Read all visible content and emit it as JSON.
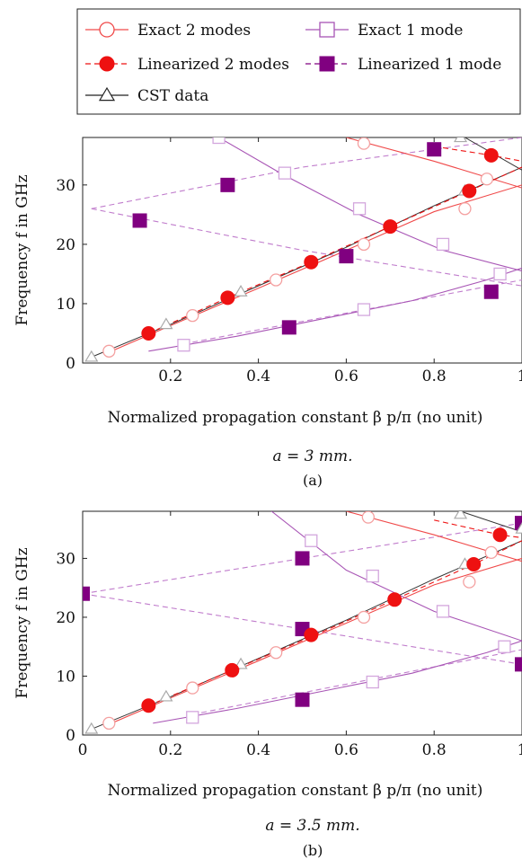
{
  "legend": {
    "entries": [
      {
        "label": "Exact 2 modes",
        "color": "#f04a4a",
        "dash": false,
        "marker": "circle-open"
      },
      {
        "label": "Exact 1 mode",
        "color": "#a855b5",
        "dash": false,
        "marker": "square-open"
      },
      {
        "label": "Linearized 2 modes",
        "color": "#ee1111",
        "dash": true,
        "marker": "circle-filled"
      },
      {
        "label": "Linearized 1 mode",
        "color": "#800080",
        "dash": true,
        "marker": "square-filled"
      },
      {
        "label": "CST data",
        "color": "#222222",
        "dash": false,
        "marker": "triangle-open"
      }
    ]
  },
  "colors": {
    "exact2": "#f04a4a",
    "exact2_marker": "#f4a0a0",
    "lin2": "#ee1111",
    "exact1": "#a855b5",
    "exact1_marker": "#d3a6dd",
    "lin1_line": "#c07ccc",
    "lin1_marker": "#800080",
    "cst": "#333333",
    "cst_marker": "#aaaaaa"
  },
  "chart_data": [
    {
      "type": "line",
      "caption_math": "a = 3 mm.",
      "caption_tag": "(a)",
      "xlabel": "Normalized propagation constant β p/π (no unit)",
      "ylabel": "Frequency f in GHz",
      "xlim": [
        0,
        1
      ],
      "ylim": [
        0,
        38
      ],
      "xticks": [
        0.2,
        0.4,
        0.6,
        0.8,
        1
      ],
      "yticks": [
        0,
        10,
        20,
        30
      ],
      "xtick_labels": [
        "0.2",
        "0.4",
        "0.6",
        "0.8",
        "1"
      ],
      "ytick_labels": [
        "0",
        "10",
        "20",
        "30"
      ],
      "series": [
        {
          "name": "Exact 2 modes",
          "key": "exact2",
          "lines": [
            [
              [
                0.05,
                1.5
              ],
              [
                0.2,
                6.3
              ],
              [
                0.4,
                12.6
              ],
              [
                0.6,
                19.0
              ],
              [
                0.8,
                25.5
              ],
              [
                1.0,
                30.0
              ]
            ],
            [
              [
                0.6,
                38.0
              ],
              [
                0.8,
                34.0
              ],
              [
                1.0,
                29.5
              ]
            ]
          ],
          "markers": [
            [
              0.06,
              2
            ],
            [
              0.25,
              8
            ],
            [
              0.44,
              14
            ],
            [
              0.64,
              20
            ],
            [
              0.87,
              26
            ],
            [
              0.92,
              31
            ],
            [
              0.64,
              37
            ]
          ]
        },
        {
          "name": "Linearized 2 modes",
          "key": "lin2",
          "lines": [
            [
              [
                0.15,
                5
              ],
              [
                0.33,
                11
              ],
              [
                0.52,
                17
              ],
              [
                0.7,
                23
              ],
              [
                0.88,
                29
              ],
              [
                1.0,
                33
              ]
            ],
            [
              [
                0.8,
                36.5
              ],
              [
                0.93,
                35
              ],
              [
                1.0,
                34
              ]
            ]
          ],
          "markers": [
            [
              0.15,
              5
            ],
            [
              0.33,
              11
            ],
            [
              0.52,
              17
            ],
            [
              0.7,
              23
            ],
            [
              0.88,
              29
            ],
            [
              0.93,
              35
            ]
          ]
        },
        {
          "name": "Exact 1 mode",
          "key": "exact1",
          "lines": [
            [
              [
                0.15,
                2
              ],
              [
                0.35,
                4.5
              ],
              [
                0.55,
                7.5
              ],
              [
                0.75,
                10.5
              ],
              [
                0.92,
                14
              ],
              [
                1.0,
                16
              ]
            ],
            [
              [
                0.31,
                38
              ],
              [
                0.45,
                32
              ],
              [
                0.63,
                25
              ],
              [
                0.82,
                19
              ],
              [
                1.0,
                15.5
              ]
            ]
          ],
          "markers": [
            [
              0.23,
              3
            ],
            [
              0.64,
              9
            ],
            [
              0.95,
              15
            ],
            [
              0.31,
              38
            ],
            [
              0.46,
              32
            ],
            [
              0.63,
              26
            ],
            [
              0.82,
              20
            ]
          ]
        },
        {
          "name": "Linearized 1 mode",
          "key": "lin1",
          "lines": [
            [
              [
                0.02,
                26
              ],
              [
                0.5,
                19
              ],
              [
                1.0,
                13
              ]
            ],
            [
              [
                0.02,
                26
              ],
              [
                0.5,
                33
              ],
              [
                1.0,
                38
              ]
            ],
            [
              [
                0.25,
                3.5
              ],
              [
                1.0,
                14
              ]
            ]
          ],
          "markers": [
            [
              0.13,
              24
            ],
            [
              0.33,
              30
            ],
            [
              0.47,
              6
            ],
            [
              0.6,
              18
            ],
            [
              0.8,
              36
            ],
            [
              0.93,
              12
            ]
          ]
        },
        {
          "name": "CST data",
          "key": "cst",
          "lines": [
            [
              [
                0.02,
                1
              ],
              [
                0.2,
                6.5
              ],
              [
                0.4,
                13
              ],
              [
                0.6,
                19.5
              ],
              [
                0.8,
                26.5
              ],
              [
                1.0,
                33
              ]
            ],
            [
              [
                0.87,
                38
              ],
              [
                1.0,
                32.5
              ]
            ]
          ],
          "markers": [
            [
              0.02,
              1
            ],
            [
              0.19,
              6.5
            ],
            [
              0.36,
              12
            ],
            [
              0.87,
              29
            ],
            [
              0.86,
              38
            ]
          ]
        }
      ]
    },
    {
      "type": "line",
      "caption_math": "a = 3.5 mm.",
      "caption_tag": "(b)",
      "xlabel": "Normalized propagation constant β p/π (no unit)",
      "ylabel": "Frequency f in GHz",
      "xlim": [
        0,
        1
      ],
      "ylim": [
        0,
        38
      ],
      "xticks": [
        0,
        0.2,
        0.4,
        0.6,
        0.8,
        1
      ],
      "yticks": [
        0,
        10,
        20,
        30
      ],
      "xtick_labels": [
        "0",
        "0.2",
        "0.4",
        "0.6",
        "0.8",
        "1"
      ],
      "ytick_labels": [
        "0",
        "10",
        "20",
        "30"
      ],
      "series": [
        {
          "name": "Exact 2 modes",
          "key": "exact2",
          "lines": [
            [
              [
                0.05,
                1.5
              ],
              [
                0.2,
                6.3
              ],
              [
                0.4,
                12.6
              ],
              [
                0.6,
                19.0
              ],
              [
                0.8,
                25.5
              ],
              [
                1.0,
                30.0
              ]
            ],
            [
              [
                0.6,
                38.0
              ],
              [
                0.8,
                34.0
              ],
              [
                1.0,
                29.5
              ]
            ]
          ],
          "markers": [
            [
              0.06,
              2
            ],
            [
              0.25,
              8
            ],
            [
              0.44,
              14
            ],
            [
              0.64,
              20
            ],
            [
              0.88,
              26
            ],
            [
              0.93,
              31
            ],
            [
              0.65,
              37
            ]
          ]
        },
        {
          "name": "Linearized 2 modes",
          "key": "lin2",
          "lines": [
            [
              [
                0.15,
                5
              ],
              [
                0.34,
                11
              ],
              [
                0.53,
                17
              ],
              [
                0.71,
                23
              ],
              [
                0.89,
                29
              ],
              [
                1.0,
                33
              ]
            ],
            [
              [
                0.8,
                36.5
              ],
              [
                0.95,
                34
              ],
              [
                1.0,
                33.5
              ]
            ]
          ],
          "markers": [
            [
              0.15,
              5
            ],
            [
              0.34,
              11
            ],
            [
              0.52,
              17
            ],
            [
              0.71,
              23
            ],
            [
              0.89,
              29
            ],
            [
              0.95,
              34
            ]
          ]
        },
        {
          "name": "Exact 1 mode",
          "key": "exact1",
          "lines": [
            [
              [
                0.16,
                2
              ],
              [
                0.35,
                4.5
              ],
              [
                0.55,
                7.5
              ],
              [
                0.75,
                10.5
              ],
              [
                0.92,
                14
              ],
              [
                1.0,
                16
              ]
            ],
            [
              [
                0.43,
                38
              ],
              [
                0.6,
                28
              ],
              [
                0.8,
                21
              ],
              [
                1.0,
                16
              ]
            ]
          ],
          "markers": [
            [
              0.25,
              3
            ],
            [
              0.66,
              9
            ],
            [
              0.96,
              15
            ],
            [
              0.52,
              33
            ],
            [
              0.66,
              27
            ],
            [
              0.82,
              21
            ]
          ]
        },
        {
          "name": "Linearized 1 mode",
          "key": "lin1",
          "lines": [
            [
              [
                0.0,
                24
              ],
              [
                0.5,
                18
              ],
              [
                1.0,
                12
              ]
            ],
            [
              [
                0.0,
                24
              ],
              [
                0.5,
                30
              ],
              [
                1.0,
                36
              ]
            ],
            [
              [
                0.25,
                3.5
              ],
              [
                1.0,
                14.5
              ]
            ]
          ],
          "markers": [
            [
              0.0,
              24
            ],
            [
              0.5,
              30
            ],
            [
              0.5,
              18
            ],
            [
              0.5,
              6
            ],
            [
              1.0,
              12
            ],
            [
              1.0,
              36
            ]
          ]
        },
        {
          "name": "CST data",
          "key": "cst",
          "lines": [
            [
              [
                0.02,
                1
              ],
              [
                0.2,
                6.5
              ],
              [
                0.4,
                13
              ],
              [
                0.6,
                19.5
              ],
              [
                0.8,
                26.5
              ],
              [
                1.0,
                33
              ]
            ],
            [
              [
                0.86,
                38
              ],
              [
                1.0,
                34.5
              ]
            ]
          ],
          "markers": [
            [
              0.02,
              1
            ],
            [
              0.19,
              6.5
            ],
            [
              0.36,
              12
            ],
            [
              0.87,
              29
            ],
            [
              0.86,
              37.5
            ],
            [
              1.0,
              35
            ]
          ]
        }
      ]
    }
  ]
}
